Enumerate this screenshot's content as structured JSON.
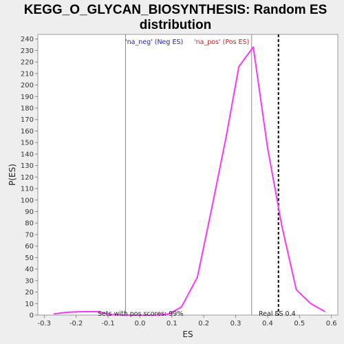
{
  "chart_data": {
    "type": "line",
    "title_line1": "KEGG_O_GLYCAN_BIOSYNTHESIS: Random ES",
    "title_line2": "distribution",
    "xlabel": "ES",
    "ylabel": "P(ES)",
    "xlim": [
      -0.32,
      0.62
    ],
    "ylim": [
      0,
      244
    ],
    "x_ticks": [
      "-0.3",
      "-0.2",
      "-0.1",
      "0.0",
      "0.1",
      "0.2",
      "0.3",
      "0.4",
      "0.5",
      "0.6"
    ],
    "x_tick_values": [
      -0.3,
      -0.2,
      -0.1,
      0.0,
      0.1,
      0.2,
      0.3,
      0.4,
      0.5,
      0.6
    ],
    "y_ticks": [
      0,
      10,
      20,
      30,
      40,
      50,
      60,
      70,
      80,
      90,
      100,
      110,
      120,
      130,
      140,
      150,
      160,
      170,
      180,
      190,
      200,
      210,
      220,
      230,
      240
    ],
    "grid": false,
    "series": [
      {
        "color": "#ff33ff",
        "x": [
          -0.27,
          -0.225,
          -0.18,
          -0.135,
          -0.09,
          -0.045,
          0.0,
          0.045,
          0.09,
          0.13,
          0.18,
          0.225,
          0.27,
          0.31,
          0.355,
          0.4,
          0.445,
          0.49,
          0.535,
          0.58
        ],
        "y": [
          1,
          2.5,
          3,
          3,
          0.5,
          0,
          0,
          0,
          1,
          7,
          33,
          93,
          155,
          216,
          233,
          145,
          77,
          22,
          10,
          3
        ]
      }
    ],
    "vlines": [
      {
        "x": -0.045,
        "style": "solid",
        "color": "#888888"
      },
      {
        "x": 0.35,
        "style": "solid",
        "color": "#888888"
      },
      {
        "x": 0.434,
        "style": "dashed",
        "color": "#000000"
      }
    ],
    "annotations": {
      "neg_label": "'na_neg' (Neg ES)",
      "pos_label": "'na_pos' (Pos ES)",
      "pos_scores": "Sets with pos scores: 99%",
      "real_es": "Real ES 0.4"
    },
    "colors": {
      "neg_label": "#2222aa",
      "pos_label": "#cc2222",
      "line": "#ff33ff"
    }
  }
}
